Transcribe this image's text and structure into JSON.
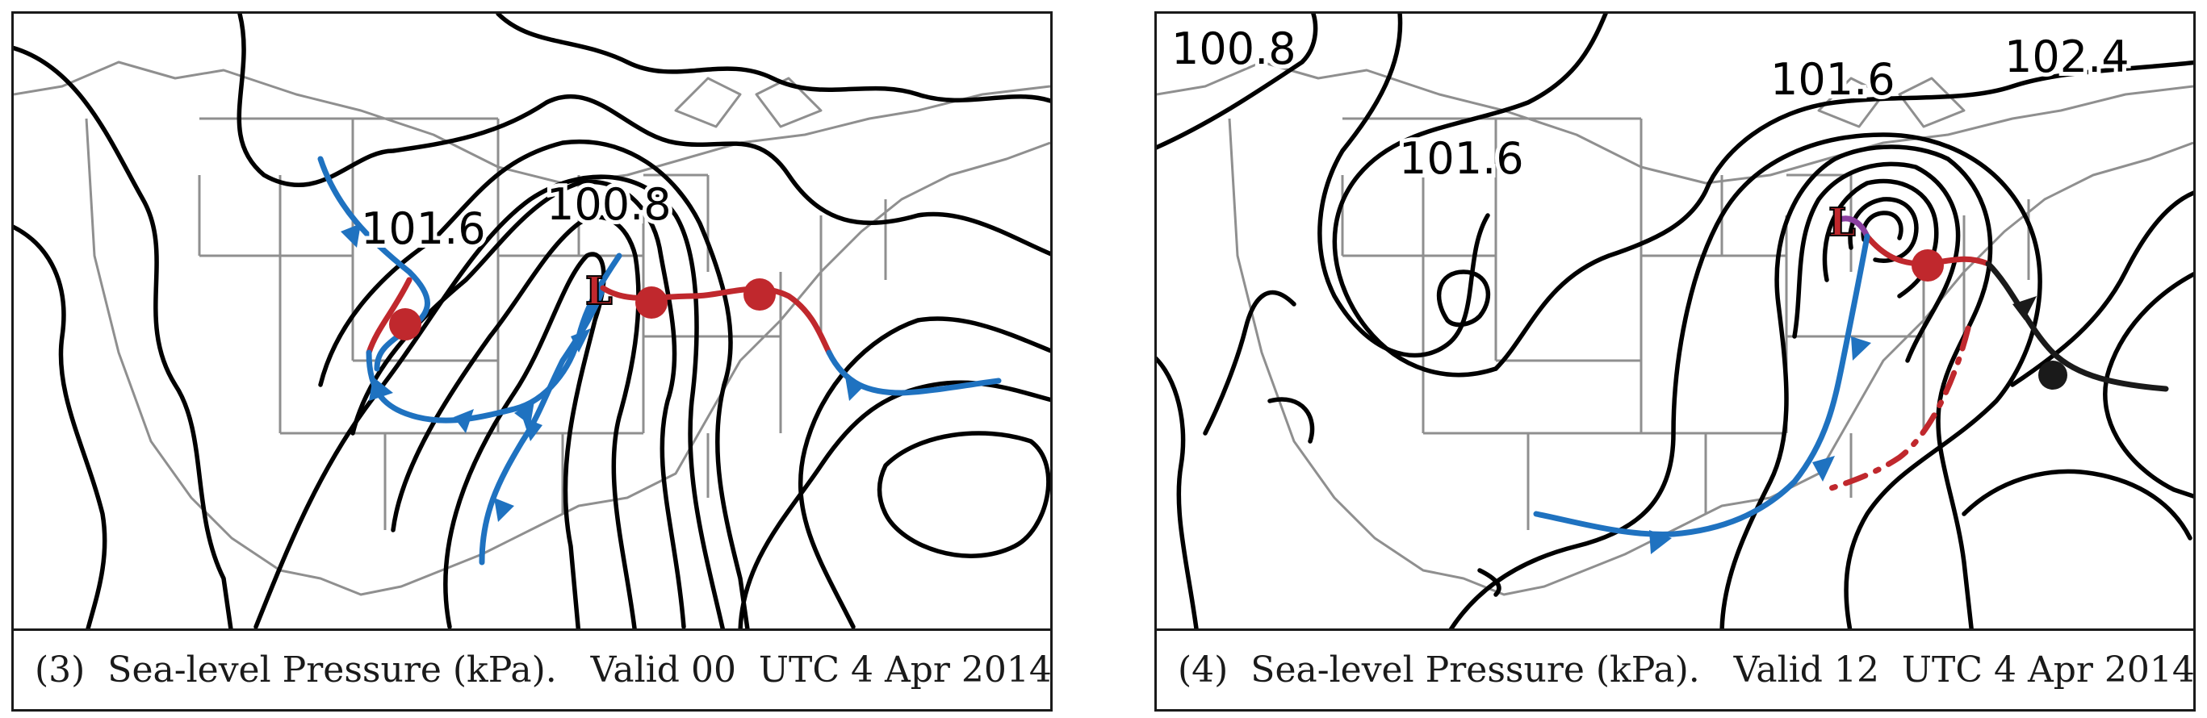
{
  "panels": [
    {
      "caption": "(3)  Sea-level Pressure (kPa).   Valid 00  UTC 4 Apr 2014",
      "isobar_labels": [
        "101.6",
        "100.8"
      ],
      "low_symbol": "L"
    },
    {
      "caption": "(4)  Sea-level Pressure (kPa).   Valid 12  UTC 4 Apr 2014",
      "isobar_labels": [
        "100.8",
        "101.6",
        "101.6",
        "102.4"
      ],
      "low_symbol": "L"
    }
  ],
  "legend_colors": {
    "cold_front": "#1f72c0",
    "warm_front": "#c0282d",
    "occluded_front": "#1a1a1a",
    "dryline": "#8b3fa0",
    "isobar": "#000000",
    "geography": "#8f8f8f"
  }
}
